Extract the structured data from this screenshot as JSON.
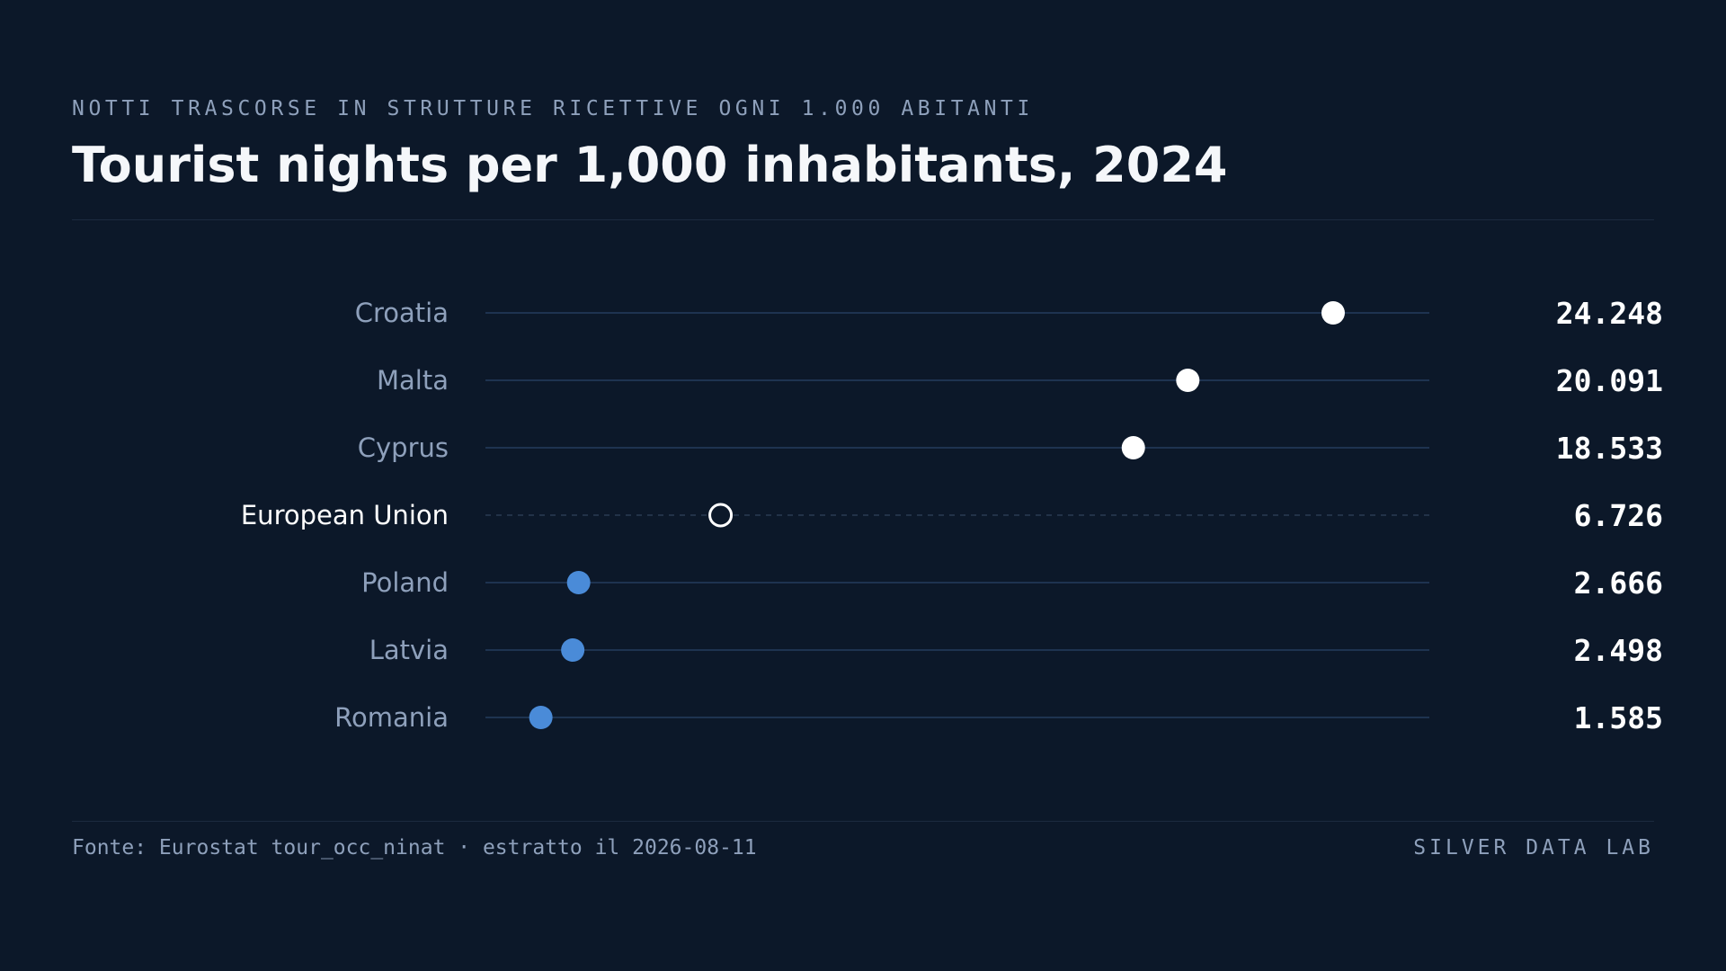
{
  "header": {
    "kicker": "NOTTI TRASCORSE IN STRUTTURE RICETTIVE OGNI 1.000 ABITANTI",
    "title": "Tourist nights per 1,000 inhabitants, 2024"
  },
  "footer": {
    "source": "Fonte: Eurostat tour_occ_ninat · estratto il 2026-08-11",
    "brand": "SILVER DATA LAB"
  },
  "colors": {
    "background": "#0c1829",
    "high": "#ffffff",
    "low": "#4a8bd8",
    "label": "#8ea0bb",
    "reference_label": "#ffffff",
    "track": "#1e3350"
  },
  "chart_data": {
    "type": "dot",
    "orientation": "horizontal",
    "xlim": [
      0,
      27000
    ],
    "grid": false,
    "categories": [
      "Croatia",
      "Malta",
      "Cyprus",
      "European Union",
      "Poland",
      "Latvia",
      "Romania"
    ],
    "values": [
      24248,
      20091,
      18533,
      6726,
      2666,
      2498,
      1585
    ],
    "value_labels": [
      "24.248",
      "20.091",
      "18.533",
      "6.726",
      "2.666",
      "2.498",
      "1.585"
    ],
    "groups": [
      "high",
      "high",
      "high",
      "reference",
      "low",
      "low",
      "low"
    ]
  }
}
